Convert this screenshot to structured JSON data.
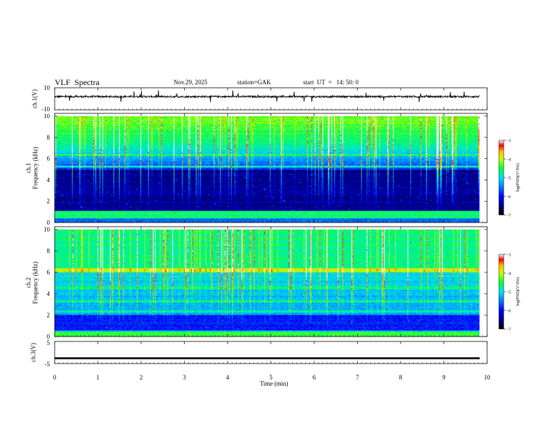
{
  "header": {
    "title": "VLF  Spectra",
    "date": "Nov.29, 2025",
    "station": "station=GAK",
    "start": "start  UT  =   14: 50: 0"
  },
  "chart_data": [
    {
      "type": "line",
      "title": "VLF  Spectra",
      "ylabel": "ch.1(V)",
      "ylim": [
        -10,
        10
      ],
      "ytick_labels": [
        "10",
        "-10"
      ],
      "xlim": [
        0,
        10
      ],
      "description_series": "ch.1 waveform amplitude, near +2 V with downward spikes to about -3 V and upward spikes to about +8 V"
    },
    {
      "type": "heatmap",
      "ylabel": "ch.1\nFrequency (kHz)",
      "ylabel_lines": [
        "ch.1",
        "Frequency  (kHz)"
      ],
      "ylim": [
        0,
        10
      ],
      "ytick_labels": [
        "0",
        "2",
        "4",
        "6",
        "8",
        "10"
      ],
      "xlim": [
        0,
        9.83
      ],
      "colorbar": {
        "label": "log(PSD)(V²/Hz)",
        "range": [
          -7,
          -3
        ],
        "tick_labels": [
          "-3",
          "-4",
          "-5",
          "-6",
          "-7"
        ]
      },
      "profile": "high PSD (-4 to -5) above 7 kHz, low PSD (-6.5 to -7) between 1 and 5 kHz, bands near 0.5-1 kHz"
    },
    {
      "type": "heatmap",
      "ylabel": "ch.2\nFrequency (kHz)",
      "ylabel_lines": [
        "ch.2",
        "Frequency  (kHz)"
      ],
      "ylim": [
        0,
        10
      ],
      "ytick_labels": [
        "0",
        "2",
        "4",
        "6",
        "8",
        "10"
      ],
      "xlim": [
        0,
        9.83
      ],
      "colorbar": {
        "label": "log(PSD)(V²/Hz)",
        "range": [
          -7,
          -3
        ],
        "tick_labels": [
          "-3",
          "-4",
          "-5",
          "-6",
          "-7"
        ]
      },
      "profile": "high PSD (-4.5) above 6 kHz, medium (-5.5) 2-6 kHz with horizontal bands, low (-6.5) 0.5-2 kHz"
    },
    {
      "type": "line",
      "ylabel": "ch.3(V)",
      "ylim": [
        -5,
        5
      ],
      "ytick_labels": [
        "5",
        "-5"
      ],
      "xlim": [
        0,
        10
      ],
      "xlabel": "Time  (min)",
      "xtick_labels": [
        "0",
        "1",
        "2",
        "3",
        "4",
        "5",
        "6",
        "7",
        "8",
        "9",
        "10"
      ],
      "constant_value": -2.6
    }
  ]
}
